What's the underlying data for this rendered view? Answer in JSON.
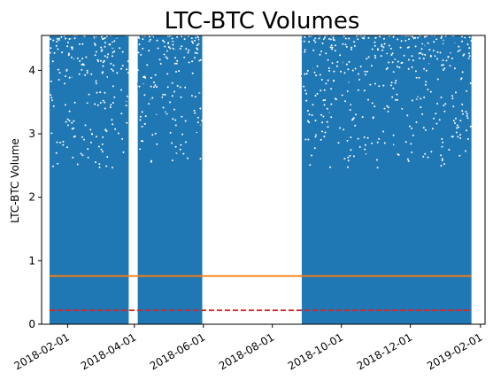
{
  "chart_data": {
    "type": "scatter",
    "title": "LTC-BTC Volumes",
    "xlabel": "",
    "ylabel": "LTC-BTC Volume",
    "x_type": "date",
    "xlim": [
      "2018-01-09",
      "2019-02-05"
    ],
    "ylim": [
      0,
      4.55
    ],
    "grid": false,
    "y_ticks": [
      "0",
      "1",
      "2",
      "3",
      "4"
    ],
    "x_ticks": [
      "2018-02-01",
      "2018-04-01",
      "2018-06-01",
      "2018-08-01",
      "2018-10-01",
      "2018-12-01",
      "2019-02-01"
    ],
    "scatter_color": "#1f77b4",
    "data_segments": [
      {
        "start": "2018-01-16",
        "end": "2018-03-26"
      },
      {
        "start": "2018-04-04",
        "end": "2018-05-30"
      },
      {
        "start": "2018-08-27",
        "end": "2019-01-23"
      }
    ],
    "reference_lines": [
      {
        "style": "solid",
        "color": "#ff7f0e",
        "y": 0.76
      },
      {
        "style": "dashed",
        "color": "#d62728",
        "y": 0.22
      }
    ]
  }
}
